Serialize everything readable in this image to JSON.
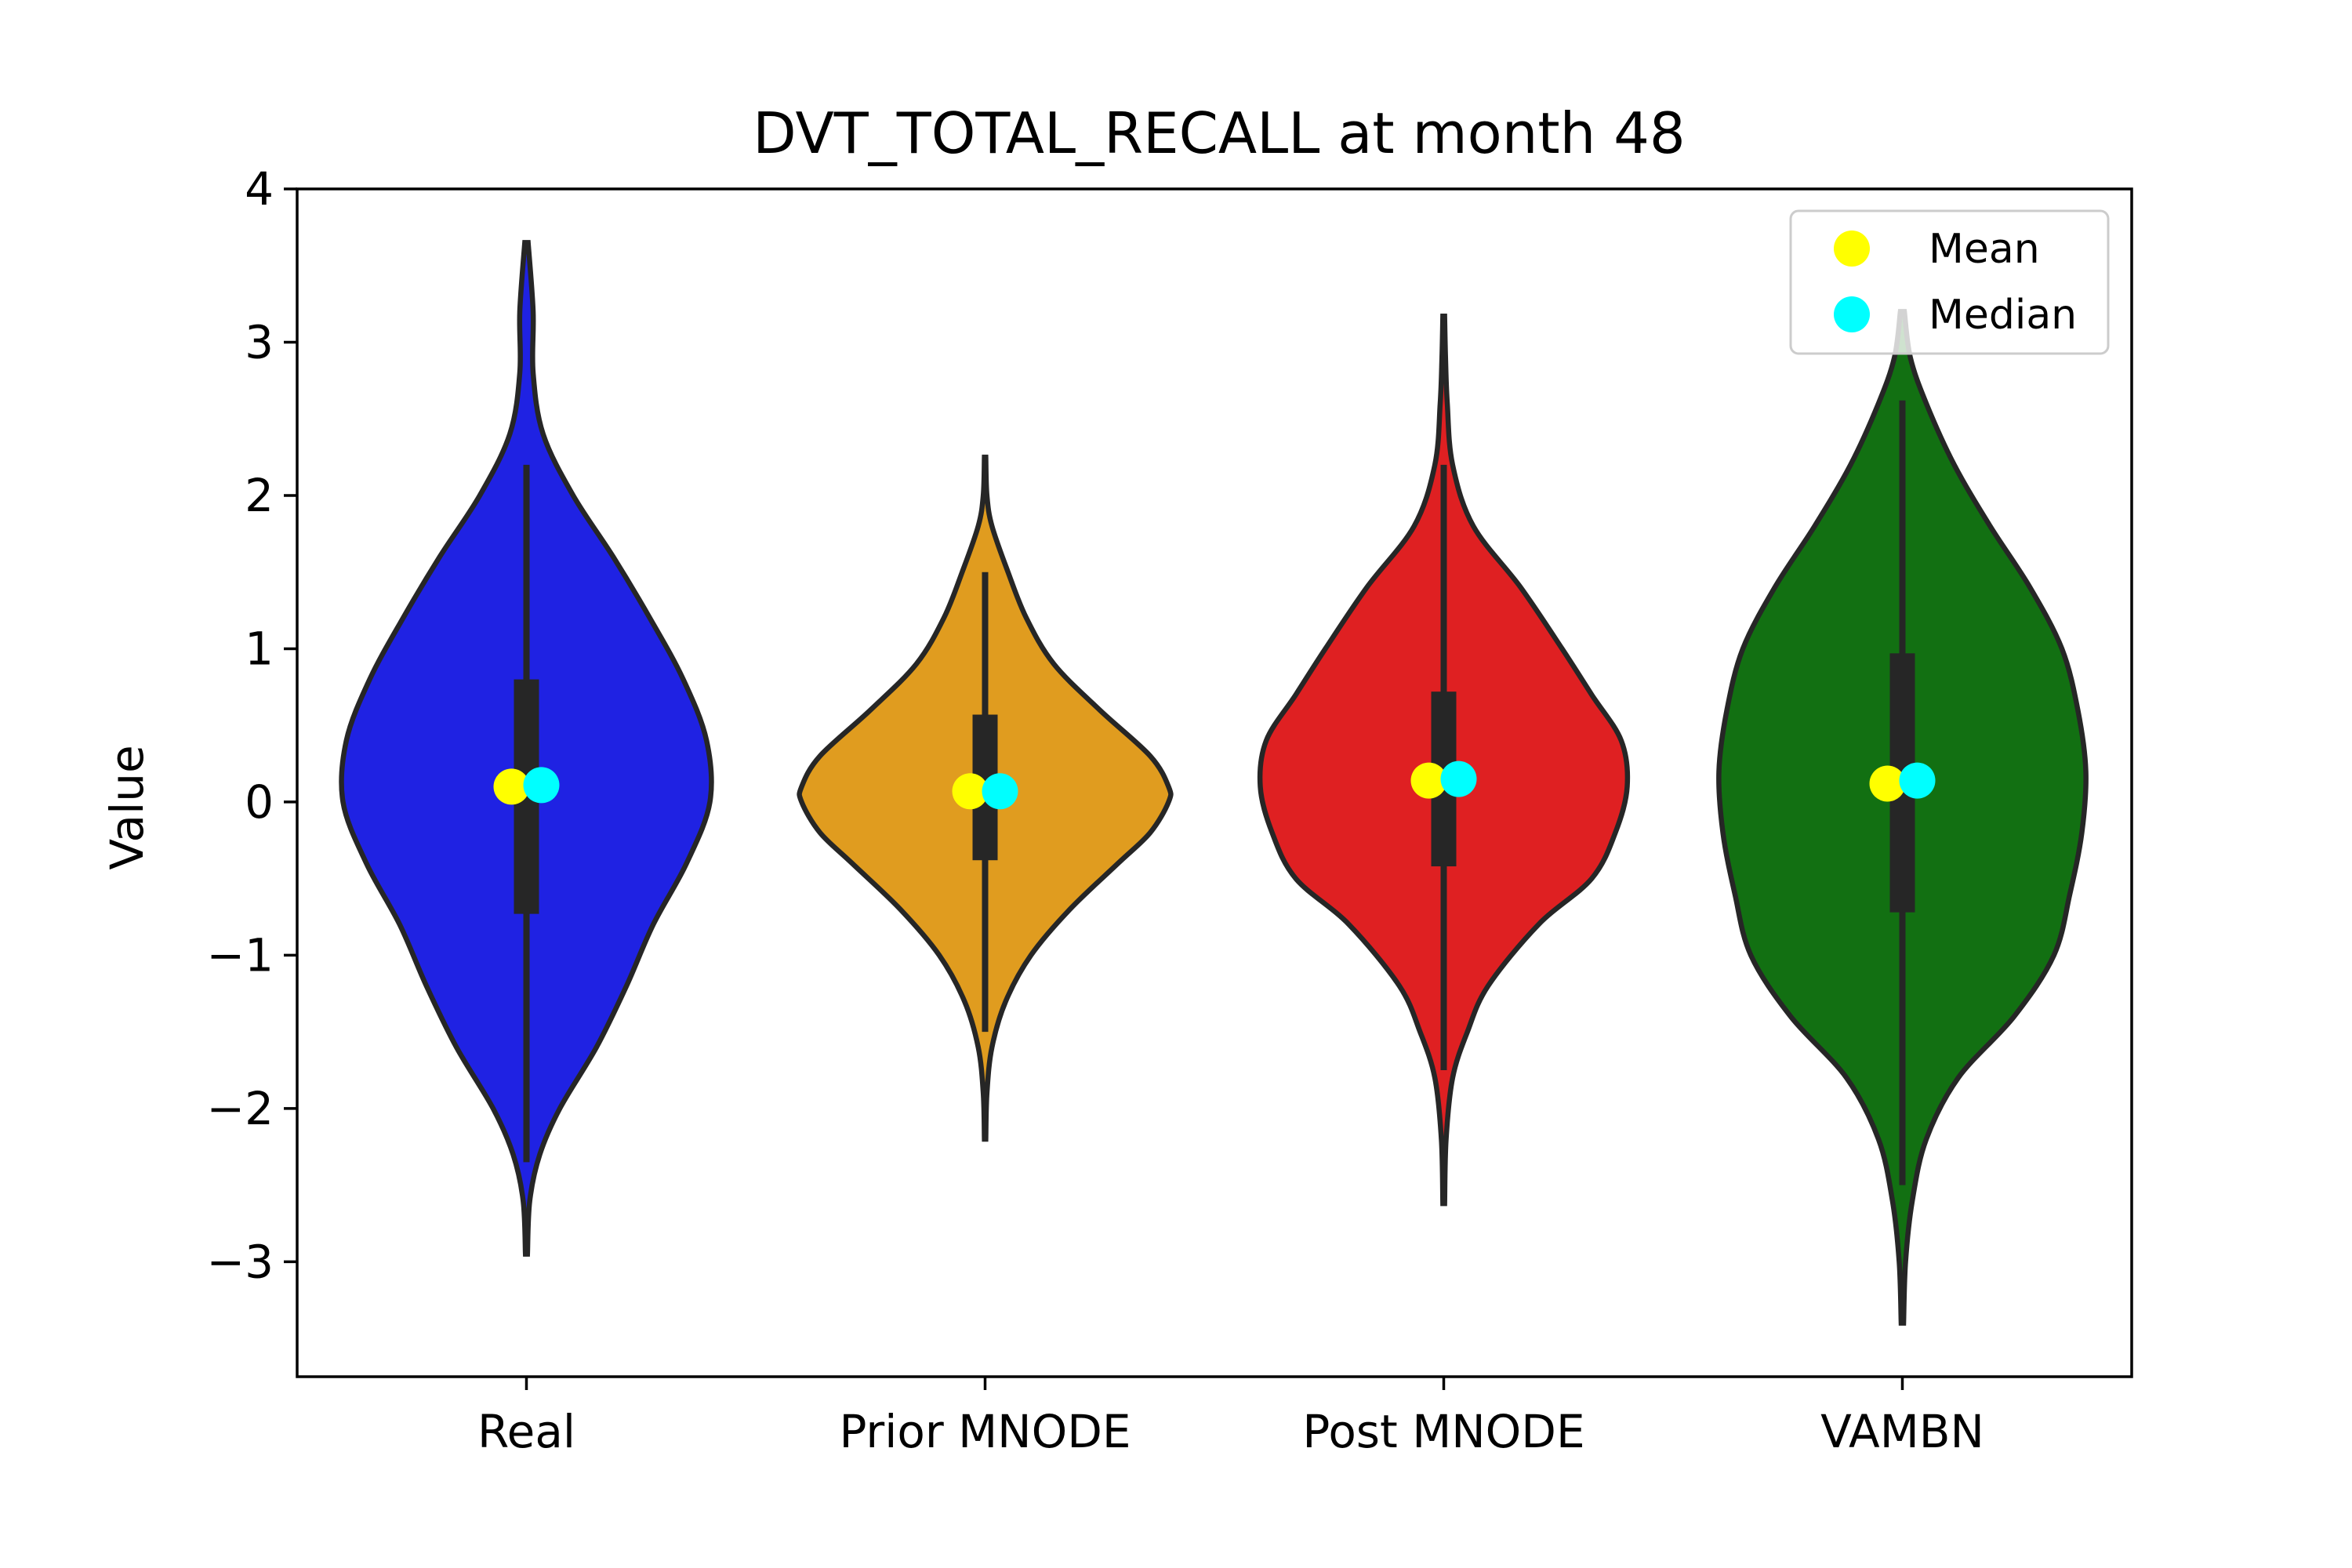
{
  "chart_data": {
    "type": "violin",
    "title": "DVT_TOTAL_RECALL at month 48",
    "xlabel": "",
    "ylabel": "Value",
    "ylim": [
      -3.75,
      4.0
    ],
    "yticks": [
      -3,
      -2,
      -1,
      0,
      1,
      2,
      3,
      4
    ],
    "ytick_labels": [
      "−3",
      "−2",
      "−1",
      "0",
      "1",
      "2",
      "3",
      "4"
    ],
    "categories": [
      "Real",
      "Prior MNODE",
      "Post MNODE",
      "VAMBN"
    ],
    "legend": {
      "position": "top-right",
      "entries": [
        {
          "label": "Mean",
          "color": "#ffff00"
        },
        {
          "label": "Median",
          "color": "#00ffff"
        }
      ]
    },
    "series": [
      {
        "name": "Real",
        "color": "#1f22e3",
        "min": -2.95,
        "max": 3.65,
        "whisker_low": -2.35,
        "whisker_high": 2.2,
        "q1": -0.73,
        "q3": 0.8,
        "mean": 0.1,
        "median": 0.11,
        "density": [
          [
            -2.95,
            0.003
          ],
          [
            -2.6,
            0.01
          ],
          [
            -2.3,
            0.04
          ],
          [
            -2.0,
            0.1
          ],
          [
            -1.6,
            0.21
          ],
          [
            -1.2,
            0.3
          ],
          [
            -0.8,
            0.38
          ],
          [
            -0.4,
            0.48
          ],
          [
            0.0,
            0.55
          ],
          [
            0.4,
            0.54
          ],
          [
            0.8,
            0.47
          ],
          [
            1.2,
            0.37
          ],
          [
            1.6,
            0.26
          ],
          [
            2.0,
            0.14
          ],
          [
            2.4,
            0.05
          ],
          [
            2.8,
            0.02
          ],
          [
            3.2,
            0.02
          ],
          [
            3.65,
            0.005
          ]
        ]
      },
      {
        "name": "Prior MNODE",
        "color": "#e09c1f",
        "min": -2.2,
        "max": 2.25,
        "whisker_low": -1.5,
        "whisker_high": 1.5,
        "q1": -0.38,
        "q3": 0.57,
        "mean": 0.07,
        "median": 0.07,
        "density": [
          [
            -2.2,
            0.003
          ],
          [
            -1.9,
            0.008
          ],
          [
            -1.6,
            0.03
          ],
          [
            -1.3,
            0.09
          ],
          [
            -1.0,
            0.2
          ],
          [
            -0.7,
            0.37
          ],
          [
            -0.4,
            0.58
          ],
          [
            -0.2,
            0.72
          ],
          [
            0.0,
            0.8
          ],
          [
            0.1,
            0.8
          ],
          [
            0.3,
            0.72
          ],
          [
            0.6,
            0.5
          ],
          [
            0.9,
            0.3
          ],
          [
            1.2,
            0.18
          ],
          [
            1.5,
            0.1
          ],
          [
            1.8,
            0.03
          ],
          [
            2.0,
            0.008
          ],
          [
            2.25,
            0.003
          ]
        ]
      },
      {
        "name": "Post MNODE",
        "color": "#df2022",
        "min": -2.62,
        "max": 3.17,
        "whisker_low": -1.75,
        "whisker_high": 2.2,
        "q1": -0.42,
        "q3": 0.72,
        "mean": 0.14,
        "median": 0.15,
        "density": [
          [
            -2.62,
            0.003
          ],
          [
            -2.2,
            0.008
          ],
          [
            -1.8,
            0.03
          ],
          [
            -1.5,
            0.08
          ],
          [
            -1.2,
            0.15
          ],
          [
            -0.8,
            0.32
          ],
          [
            -0.5,
            0.5
          ],
          [
            -0.2,
            0.58
          ],
          [
            0.1,
            0.62
          ],
          [
            0.4,
            0.6
          ],
          [
            0.7,
            0.5
          ],
          [
            1.0,
            0.4
          ],
          [
            1.4,
            0.26
          ],
          [
            1.8,
            0.1
          ],
          [
            2.2,
            0.03
          ],
          [
            2.6,
            0.012
          ],
          [
            2.9,
            0.006
          ],
          [
            3.17,
            0.003
          ]
        ]
      },
      {
        "name": "VAMBN",
        "color": "#127012",
        "min": -3.4,
        "max": 3.2,
        "whisker_low": -2.5,
        "whisker_high": 2.62,
        "q1": -0.72,
        "q3": 0.97,
        "mean": 0.12,
        "median": 0.14,
        "density": [
          [
            -3.4,
            0.003
          ],
          [
            -3.0,
            0.008
          ],
          [
            -2.6,
            0.025
          ],
          [
            -2.2,
            0.06
          ],
          [
            -1.8,
            0.14
          ],
          [
            -1.4,
            0.28
          ],
          [
            -1.0,
            0.38
          ],
          [
            -0.6,
            0.42
          ],
          [
            -0.2,
            0.45
          ],
          [
            0.2,
            0.46
          ],
          [
            0.6,
            0.44
          ],
          [
            1.0,
            0.4
          ],
          [
            1.4,
            0.32
          ],
          [
            1.8,
            0.22
          ],
          [
            2.2,
            0.13
          ],
          [
            2.6,
            0.06
          ],
          [
            2.9,
            0.02
          ],
          [
            3.2,
            0.005
          ]
        ]
      }
    ]
  }
}
